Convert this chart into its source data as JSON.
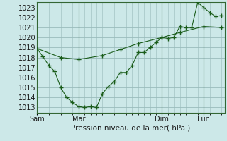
{
  "bg_color": "#cce8e8",
  "grid_color": "#99bbbb",
  "line_color": "#1a5c1a",
  "marker_color": "#1a5c1a",
  "xlabel": "Pression niveau de la mer( hPa )",
  "ylim": [
    1012.5,
    1023.5
  ],
  "yticks": [
    1013,
    1014,
    1015,
    1016,
    1017,
    1018,
    1019,
    1020,
    1021,
    1022,
    1023
  ],
  "day_labels": [
    "Sam",
    "Mar",
    "Dim",
    "Lun"
  ],
  "day_positions": [
    0,
    14,
    42,
    56
  ],
  "series1_x": [
    0,
    2,
    4,
    6,
    8,
    10,
    12,
    14,
    16,
    18,
    20,
    22,
    24,
    26,
    28,
    30,
    32,
    34,
    36,
    38,
    40,
    42,
    44,
    46,
    48,
    50,
    52,
    54,
    56,
    58,
    60,
    62
  ],
  "series1_y": [
    1018.9,
    1018.1,
    1017.2,
    1016.6,
    1015.0,
    1014.0,
    1013.5,
    1013.1,
    1013.0,
    1013.1,
    1013.0,
    1014.4,
    1015.1,
    1015.6,
    1016.5,
    1016.5,
    1017.2,
    1018.5,
    1018.5,
    1019.0,
    1019.5,
    1020.0,
    1019.9,
    1020.0,
    1021.1,
    1021.0,
    1021.0,
    1023.5,
    1023.0,
    1022.5,
    1022.1,
    1022.2
  ],
  "series2_x": [
    0,
    8,
    14,
    22,
    28,
    34,
    42,
    48,
    56,
    62
  ],
  "series2_y": [
    1018.9,
    1018.0,
    1017.8,
    1018.2,
    1018.8,
    1019.4,
    1020.0,
    1020.5,
    1021.1,
    1021.0
  ],
  "xlim": [
    0,
    63
  ]
}
